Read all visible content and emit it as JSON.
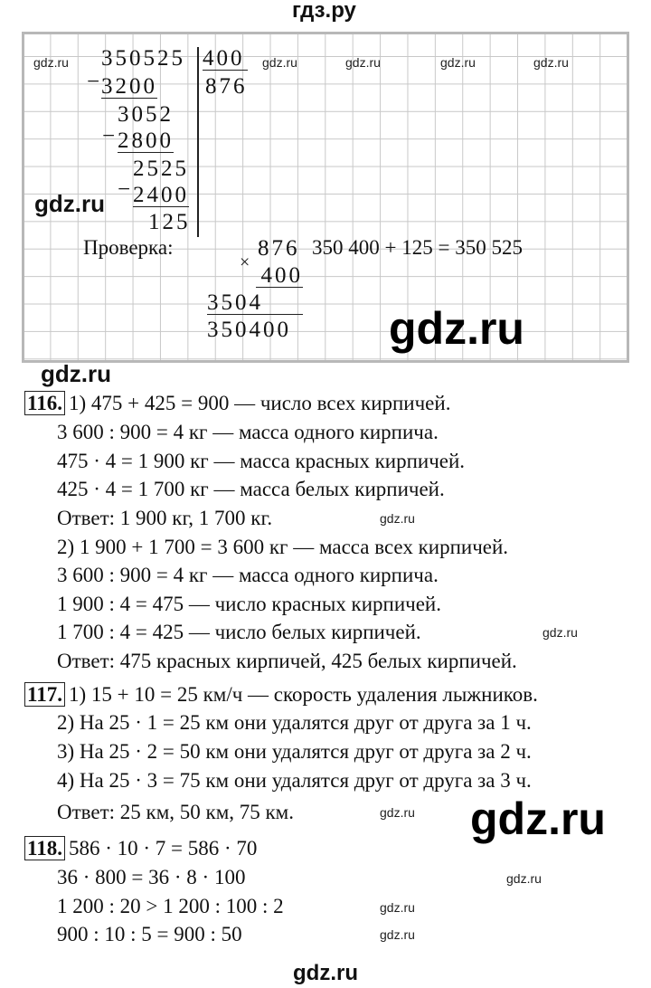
{
  "header": "гдз.ру",
  "footer": "gdz.ru",
  "watermark": "gdz.ru",
  "division": {
    "dividend": "350525",
    "divisor": "400",
    "quotient": "876",
    "steps": [
      "3200",
      "3052",
      "2800",
      "2525",
      "2400",
      "125"
    ]
  },
  "check": {
    "label": "Проверка:",
    "factor1": "876",
    "factor2": "400",
    "partial": "3504",
    "product": "350400",
    "sum": "350 400 + 125 = 350 525",
    "times": "×",
    "minus": "−"
  },
  "tasks": [
    {
      "number": "116.",
      "lines": [
        "1) 475 + 425 = 900 — число всех кирпичей.",
        "3 600 : 900 = 4 кг — масса одного кирпича.",
        "475 · 4 = 1 900 кг — масса красных кирпичей.",
        "425 · 4 = 1 700 кг — масса белых кирпичей.",
        "Ответ: 1 900 кг, 1 700 кг.",
        "2) 1 900 + 1 700 = 3 600 кг — масса всех кирпичей.",
        "3 600 : 900 = 4 кг — масса одного кирпича.",
        "1 900 : 4 = 475 — число красных кирпичей.",
        "1 700 : 4 = 425 — число белых кирпичей.",
        "Ответ: 475 красных кирпичей, 425 белых кирпичей."
      ]
    },
    {
      "number": "117.",
      "lines": [
        "1) 15 + 10 = 25 км/ч — скорость удаления лыжников.",
        "2) На 25 · 1 = 25 км они удалятся друг от друга за 1 ч.",
        "3) На 25 · 2 = 50 км они удалятся друг от друга за 2 ч.",
        "4) На 25 · 3 = 75 км они удалятся друг от друга за 3 ч.",
        "Ответ: 25 км, 50 км, 75 км."
      ]
    },
    {
      "number": "118.",
      "lines": [
        "586 · 10 · 7 = 586 · 70",
        "36 · 800 = 36 · 8 · 100",
        "1 200 : 20 > 1 200 : 100 : 2",
        "900 : 10 : 5 = 900 : 50"
      ]
    }
  ]
}
